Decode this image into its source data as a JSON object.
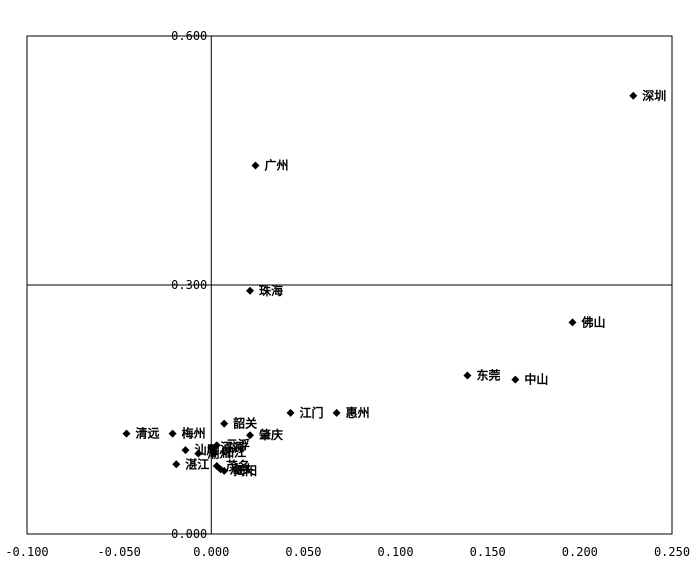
{
  "chart_data": {
    "type": "scatter",
    "title": "",
    "xlabel": "",
    "ylabel": "",
    "xlim": [
      -0.1,
      0.25
    ],
    "ylim": [
      0.0,
      0.6
    ],
    "grid": false,
    "x_ticks": [
      "-0.100",
      "-0.050",
      "0.000",
      "0.050",
      "0.100",
      "0.150",
      "0.200",
      "0.250"
    ],
    "y_ticks": [
      "0.000",
      "0.300",
      "0.600"
    ],
    "points": [
      {
        "label": "深圳",
        "x": 0.229,
        "y": 0.528
      },
      {
        "label": "广州",
        "x": 0.024,
        "y": 0.444
      },
      {
        "label": "珠海",
        "x": 0.021,
        "y": 0.293
      },
      {
        "label": "佛山",
        "x": 0.196,
        "y": 0.255
      },
      {
        "label": "东莞",
        "x": 0.139,
        "y": 0.191
      },
      {
        "label": "中山",
        "x": 0.165,
        "y": 0.186
      },
      {
        "label": "江门",
        "x": 0.043,
        "y": 0.146
      },
      {
        "label": "惠州",
        "x": 0.068,
        "y": 0.146
      },
      {
        "label": "韶关",
        "x": 0.007,
        "y": 0.133
      },
      {
        "label": "肇庆",
        "x": 0.021,
        "y": 0.119
      },
      {
        "label": "清远",
        "x": -0.046,
        "y": 0.121
      },
      {
        "label": "梅州",
        "x": -0.021,
        "y": 0.121
      },
      {
        "label": "汕尾",
        "x": -0.014,
        "y": 0.101
      },
      {
        "label": "云浮",
        "x": 0.003,
        "y": 0.107
      },
      {
        "label": "河源",
        "x": 0.0,
        "y": 0.104
      },
      {
        "label": "潮州",
        "x": -0.007,
        "y": 0.097
      },
      {
        "label": "阳江",
        "x": 0.001,
        "y": 0.098
      },
      {
        "label": "湛江",
        "x": -0.019,
        "y": 0.084
      },
      {
        "label": "茂名",
        "x": 0.003,
        "y": 0.082
      },
      {
        "label": "汕头",
        "x": 0.005,
        "y": 0.078
      },
      {
        "label": "揭阳",
        "x": 0.007,
        "y": 0.076
      }
    ]
  }
}
